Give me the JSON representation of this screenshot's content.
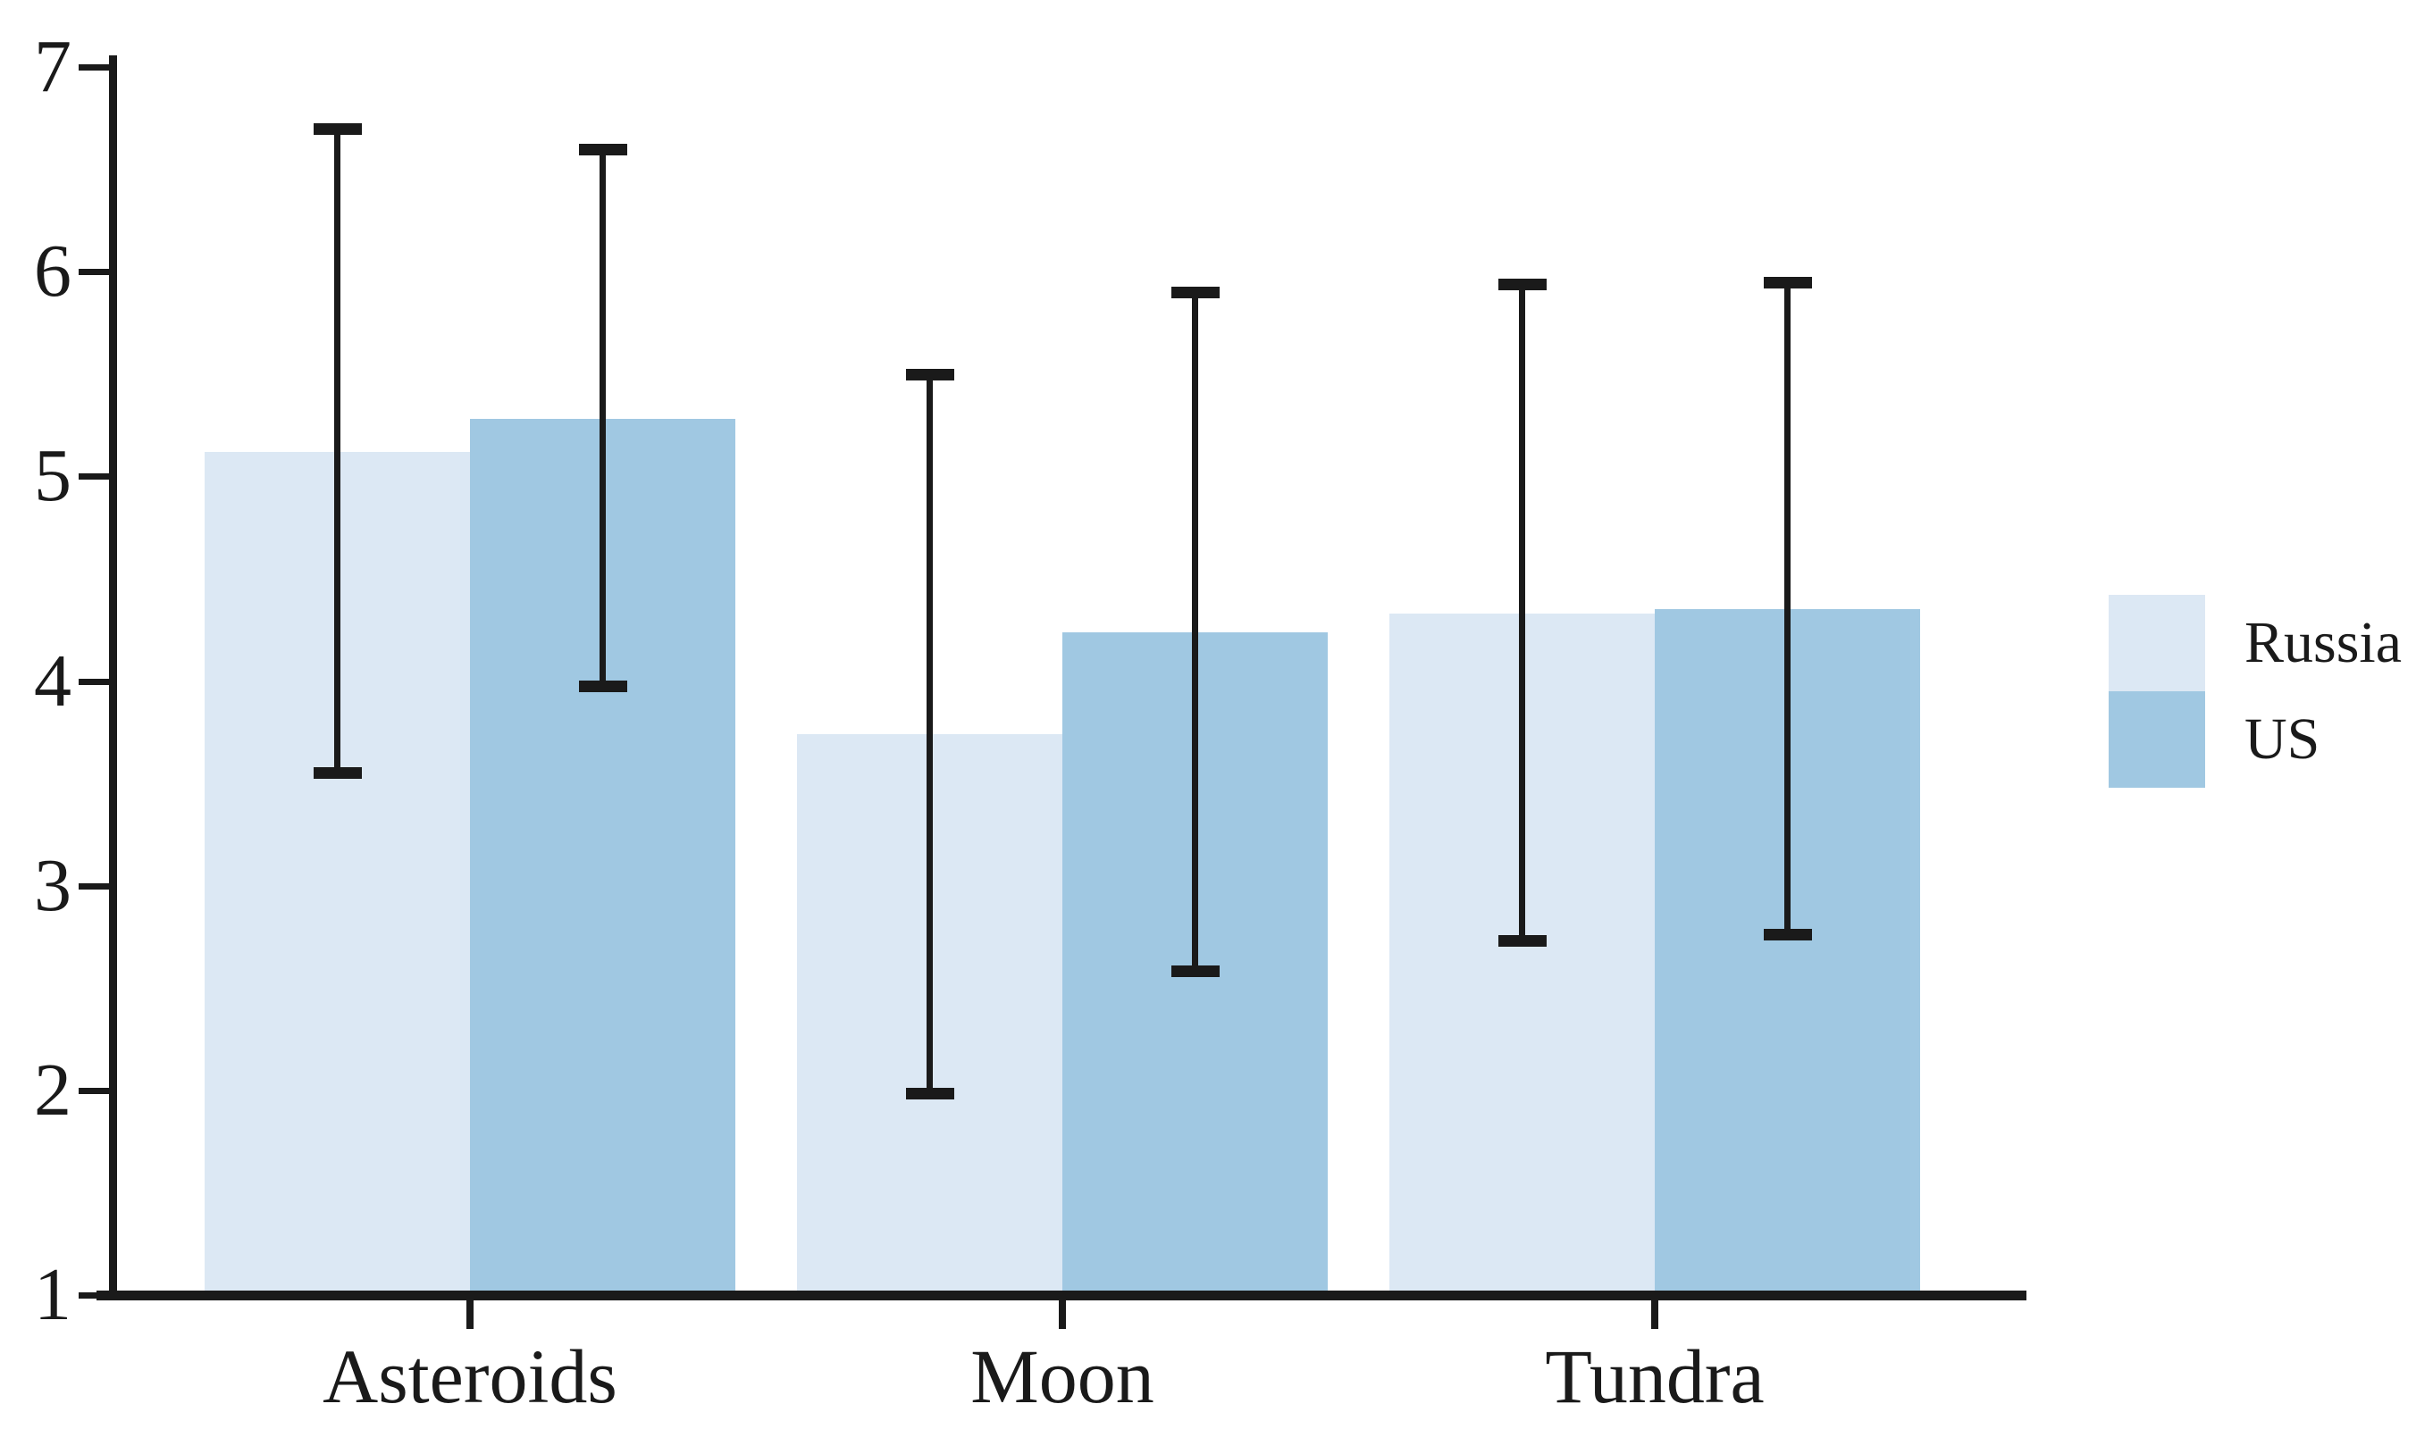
{
  "chart_data": {
    "type": "bar",
    "title": "",
    "xlabel": "",
    "ylabel": "",
    "categories": [
      "Asteroids",
      "Moon",
      "Tundra"
    ],
    "series": [
      {
        "name": "Russia",
        "color": "#dce8f4",
        "values": [
          5.12,
          3.74,
          4.33
        ],
        "error_low": [
          3.55,
          1.98,
          2.73
        ],
        "error_high": [
          6.7,
          5.5,
          5.94
        ]
      },
      {
        "name": "US",
        "color": "#a0c8e2",
        "values": [
          5.28,
          4.24,
          4.35
        ],
        "error_low": [
          3.97,
          2.58,
          2.76
        ],
        "error_high": [
          6.6,
          5.9,
          5.95
        ]
      }
    ],
    "ylim": [
      1,
      7
    ],
    "yticks": [
      1,
      2,
      3,
      4,
      5,
      6,
      7
    ],
    "grid": false,
    "legend_position": "right",
    "error_bars": "symmetric, cap-ended",
    "axis_color": "#1a1a1a",
    "background_color": "#ffffff"
  }
}
